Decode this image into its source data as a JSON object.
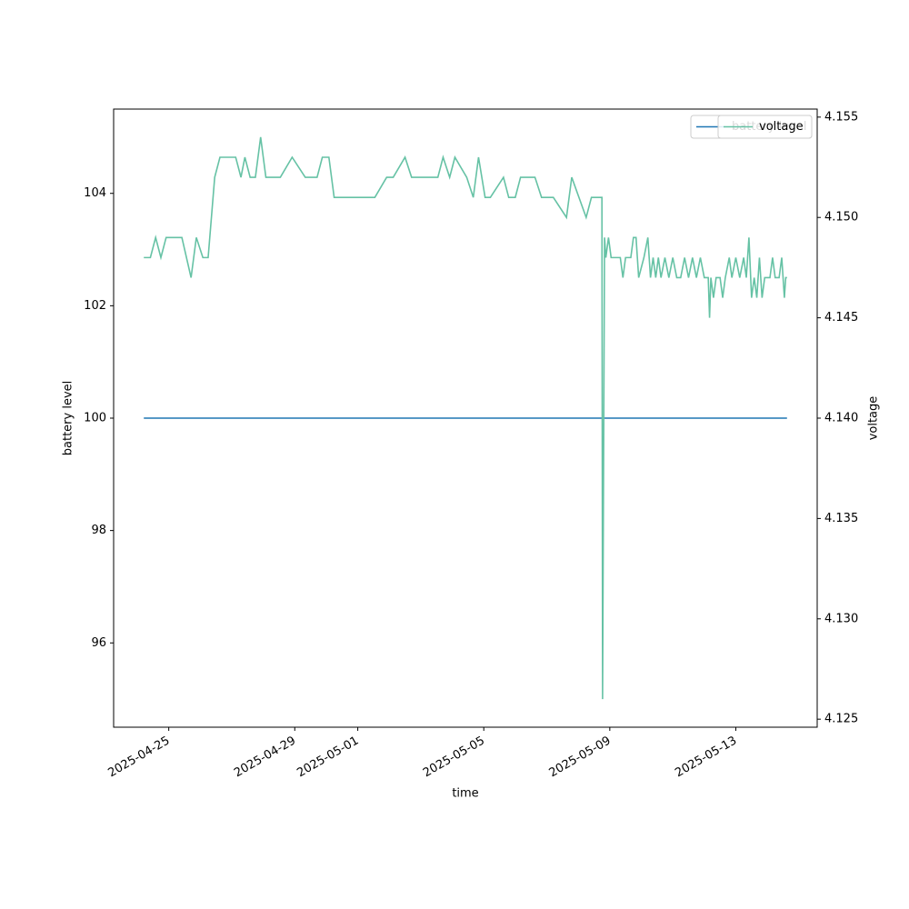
{
  "chart_data": {
    "type": "line",
    "xlabel": "time",
    "ylabel": "battery level",
    "y2label": "voltage",
    "xlim": [
      "2025-04-23T06:00",
      "2025-05-15T14:00"
    ],
    "xticks": [
      "2025-04-25",
      "2025-04-29",
      "2025-05-01",
      "2025-05-05",
      "2025-05-09",
      "2025-05-13"
    ],
    "ylim": [
      94.5,
      105.5
    ],
    "yticks": [
      96,
      98,
      100,
      102,
      104
    ],
    "y2lim": [
      4.1246,
      4.1554
    ],
    "y2ticks": [
      4.125,
      {
        "value": 4.13,
        "label": "4.130"
      },
      4.135,
      {
        "value": 4.14,
        "label": "4.140"
      },
      4.145,
      {
        "value": 4.15,
        "label": "4.150"
      },
      4.155
    ],
    "legend": "upper right",
    "series": [
      {
        "name": "battery level",
        "color": "#1f77b4",
        "x": [
          "2025-04-24T05:00",
          "2025-05-14T15:00"
        ],
        "values": [
          100,
          100
        ]
      },
      {
        "name": "voltage",
        "color": "#66c2a5",
        "axis": "y2",
        "x": [
          "2025-04-24T05:00",
          "2025-04-24T10:00",
          "2025-04-24T14:00",
          "2025-04-24T18:00",
          "2025-04-24T22:00",
          "2025-04-25T10:00",
          "2025-04-25T17:00",
          "2025-04-25T21:00",
          "2025-04-26T02:00",
          "2025-04-26T06:00",
          "2025-04-26T11:00",
          "2025-04-26T15:00",
          "2025-04-27T03:00",
          "2025-04-27T07:00",
          "2025-04-27T10:00",
          "2025-04-27T14:00",
          "2025-04-27T18:00",
          "2025-04-27T22:00",
          "2025-04-28T02:00",
          "2025-04-28T13:00",
          "2025-04-28T22:00",
          "2025-04-29T08:00",
          "2025-04-29T17:00",
          "2025-04-29T21:00",
          "2025-04-30T02:00",
          "2025-04-30T06:00",
          "2025-05-01T13:00",
          "2025-05-01T22:00",
          "2025-05-02T03:00",
          "2025-05-02T12:00",
          "2025-05-02T17:00",
          "2025-05-03T13:00",
          "2025-05-03T17:00",
          "2025-05-03T22:00",
          "2025-05-04T02:00",
          "2025-05-04T11:00",
          "2025-05-04T16:00",
          "2025-05-04T20:00",
          "2025-05-05T01:00",
          "2025-05-05T05:00",
          "2025-05-05T15:00",
          "2025-05-05T19:00",
          "2025-05-06T00:00",
          "2025-05-06T04:00",
          "2025-05-06T15:00",
          "2025-05-06T20:00",
          "2025-05-07T05:00",
          "2025-05-07T15:00",
          "2025-05-07T19:00",
          "2025-05-08T06:00",
          "2025-05-08T10:00",
          "2025-05-08T18:00",
          "2025-05-08T18:30",
          "2025-05-08T20:00",
          "2025-05-08T21:00",
          "2025-05-08T23:00",
          "2025-05-09T01:00",
          "2025-05-09T04:00",
          "2025-05-09T08:00",
          "2025-05-09T10:00",
          "2025-05-09T12:00",
          "2025-05-09T16:00",
          "2025-05-09T18:00",
          "2025-05-09T20:00",
          "2025-05-09T22:00",
          "2025-05-10T02:00",
          "2025-05-10T05:00",
          "2025-05-10T07:00",
          "2025-05-10T09:00",
          "2025-05-10T11:00",
          "2025-05-10T13:00",
          "2025-05-10T15:00",
          "2025-05-10T18:00",
          "2025-05-10T21:00",
          "2025-05-11T00:00",
          "2025-05-11T03:00",
          "2025-05-11T06:00",
          "2025-05-11T09:00",
          "2025-05-11T12:00",
          "2025-05-11T15:00",
          "2025-05-11T18:00",
          "2025-05-11T21:00",
          "2025-05-12T00:00",
          "2025-05-12T03:00",
          "2025-05-12T04:00",
          "2025-05-12T05:00",
          "2025-05-12T07:00",
          "2025-05-12T09:00",
          "2025-05-12T12:00",
          "2025-05-12T14:00",
          "2025-05-12T16:00",
          "2025-05-12T19:00",
          "2025-05-12T21:00",
          "2025-05-13T00:00",
          "2025-05-13T03:00",
          "2025-05-13T06:00",
          "2025-05-13T08:00",
          "2025-05-13T10:00",
          "2025-05-13T12:00",
          "2025-05-13T14:00",
          "2025-05-13T16:00",
          "2025-05-13T18:00",
          "2025-05-13T20:00",
          "2025-05-13T22:00",
          "2025-05-14T02:00",
          "2025-05-14T04:00",
          "2025-05-14T06:00",
          "2025-05-14T09:00",
          "2025-05-14T11:00",
          "2025-05-14T13:00",
          "2025-05-14T14:00",
          "2025-05-14T15:00"
        ],
        "values": [
          4.148,
          4.148,
          4.149,
          4.148,
          4.149,
          4.149,
          4.147,
          4.149,
          4.148,
          4.148,
          4.152,
          4.153,
          4.153,
          4.152,
          4.153,
          4.152,
          4.152,
          4.154,
          4.152,
          4.152,
          4.153,
          4.152,
          4.152,
          4.153,
          4.153,
          4.151,
          4.151,
          4.152,
          4.152,
          4.153,
          4.152,
          4.152,
          4.153,
          4.152,
          4.153,
          4.152,
          4.151,
          4.153,
          4.151,
          4.151,
          4.152,
          4.151,
          4.151,
          4.152,
          4.152,
          4.151,
          4.151,
          4.15,
          4.152,
          4.15,
          4.151,
          4.151,
          4.126,
          4.149,
          4.148,
          4.149,
          4.148,
          4.148,
          4.148,
          4.147,
          4.148,
          4.148,
          4.149,
          4.149,
          4.147,
          4.148,
          4.149,
          4.147,
          4.148,
          4.147,
          4.148,
          4.147,
          4.148,
          4.147,
          4.148,
          4.147,
          4.147,
          4.148,
          4.147,
          4.148,
          4.147,
          4.148,
          4.147,
          4.147,
          4.145,
          4.147,
          4.146,
          4.147,
          4.147,
          4.146,
          4.147,
          4.148,
          4.147,
          4.148,
          4.147,
          4.148,
          4.147,
          4.149,
          4.146,
          4.147,
          4.146,
          4.148,
          4.146,
          4.147,
          4.147,
          4.148,
          4.147,
          4.147,
          4.148,
          4.146,
          4.147,
          4.147
        ]
      }
    ]
  }
}
